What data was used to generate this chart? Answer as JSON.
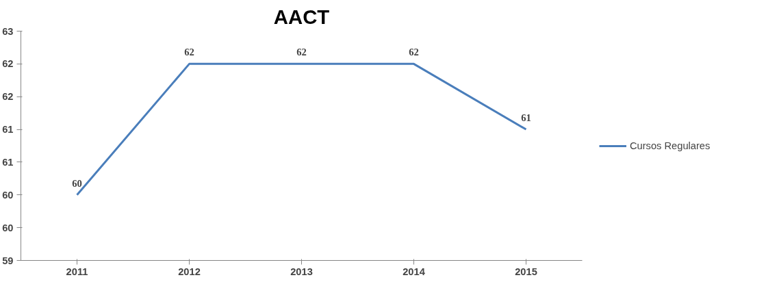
{
  "chart_data": {
    "type": "line",
    "title": "AACT",
    "categories": [
      "2011",
      "2012",
      "2013",
      "2014",
      "2015"
    ],
    "series": [
      {
        "name": "Cursos Regulares",
        "color": "#4a7ebb",
        "values": [
          60,
          62,
          62,
          62,
          61
        ]
      }
    ],
    "ylim": [
      59,
      62.5
    ],
    "yticks": [
      59,
      {
        "value": 59.5,
        "label": "60"
      },
      60,
      {
        "value": 60.5,
        "label": "61"
      },
      61,
      {
        "value": 61.5,
        "label": "62"
      },
      62,
      {
        "value": 62.5,
        "label": "63"
      }
    ],
    "data_labels": true,
    "legend": "right",
    "grid": false,
    "marker": "none"
  }
}
